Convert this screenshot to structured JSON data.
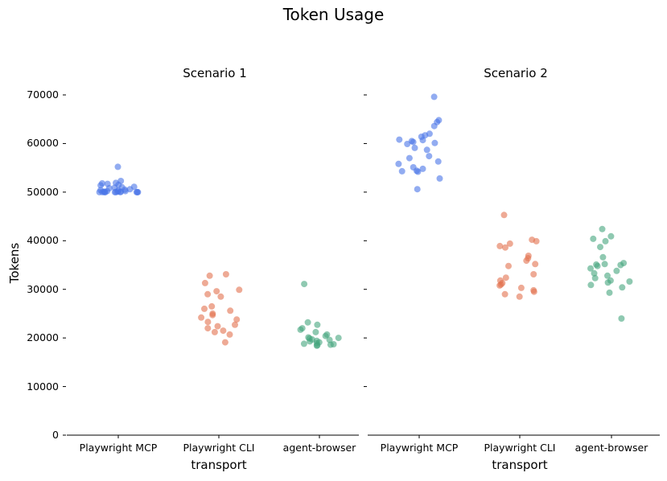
{
  "chart_data": {
    "type": "scatter",
    "subtype": "strip",
    "title": "Token Usage",
    "ylabel": "Tokens",
    "ylim": [
      0,
      70000
    ],
    "yticks": [
      0,
      10000,
      20000,
      30000,
      40000,
      50000,
      60000,
      70000
    ],
    "ytick_labels": [
      "0",
      "10000",
      "20000",
      "30000",
      "40000",
      "50000",
      "60000",
      "70000"
    ],
    "grid": false,
    "legend": null,
    "categories": [
      "Playwright MCP",
      "Playwright CLI",
      "agent-browser"
    ],
    "colors": {
      "Playwright MCP": "#4a74e8",
      "Playwright CLI": "#e2714f",
      "agent-browser": "#44a57d"
    },
    "panels": [
      {
        "title": "Scenario 1",
        "xlabel": "transport",
        "series": [
          {
            "name": "Playwright MCP",
            "values": [
              55200,
              52300,
              51800,
              51700,
              51900,
              51500,
              51400,
              51100,
              51000,
              50900,
              50800,
              50600,
              50500,
              50400,
              50300,
              50200,
              50200,
              50100,
              50100,
              50100,
              50000,
              50000,
              50000,
              50000,
              50000,
              50000,
              50000,
              50000,
              50000,
              50000
            ]
          },
          {
            "name": "Playwright CLI",
            "values": [
              33100,
              32800,
              31300,
              29900,
              29600,
              29000,
              28500,
              26500,
              26000,
              25600,
              25000,
              24700,
              24200,
              23800,
              23300,
              22700,
              22400,
              22000,
              21500,
              21200,
              20700,
              19100
            ]
          },
          {
            "name": "agent-browser",
            "values": [
              31100,
              23200,
              22700,
              22000,
              21700,
              21200,
              20700,
              20400,
              20000,
              19700,
              19400,
              19100,
              18900,
              18700,
              18500,
              18400,
              19900,
              20100,
              19600,
              18800,
              19300,
              18600
            ]
          }
        ]
      },
      {
        "title": "Scenario 2",
        "xlabel": "transport",
        "series": [
          {
            "name": "Playwright MCP",
            "values": [
              69600,
              64800,
              64400,
              63600,
              62000,
              61700,
              61400,
              60800,
              60500,
              60300,
              59900,
              59100,
              58700,
              57400,
              57000,
              56300,
              55800,
              55100,
              54800,
              54400,
              54300,
              52800,
              50600,
              60100,
              60700,
              54200
            ]
          },
          {
            "name": "Playwright CLI",
            "values": [
              45300,
              40200,
              39900,
              39400,
              38900,
              38600,
              36900,
              36400,
              35900,
              35200,
              34800,
              33100,
              32400,
              31800,
              31300,
              30800,
              30300,
              29800,
              29500,
              29000,
              28500,
              31000
            ]
          },
          {
            "name": "agent-browser",
            "values": [
              42400,
              40900,
              40400,
              39900,
              38700,
              36600,
              35400,
              35100,
              34800,
              34300,
              33800,
              33300,
              32800,
              32300,
              31800,
              31400,
              30900,
              30400,
              29300,
              24000,
              35200,
              31600,
              35000
            ]
          }
        ]
      }
    ]
  }
}
